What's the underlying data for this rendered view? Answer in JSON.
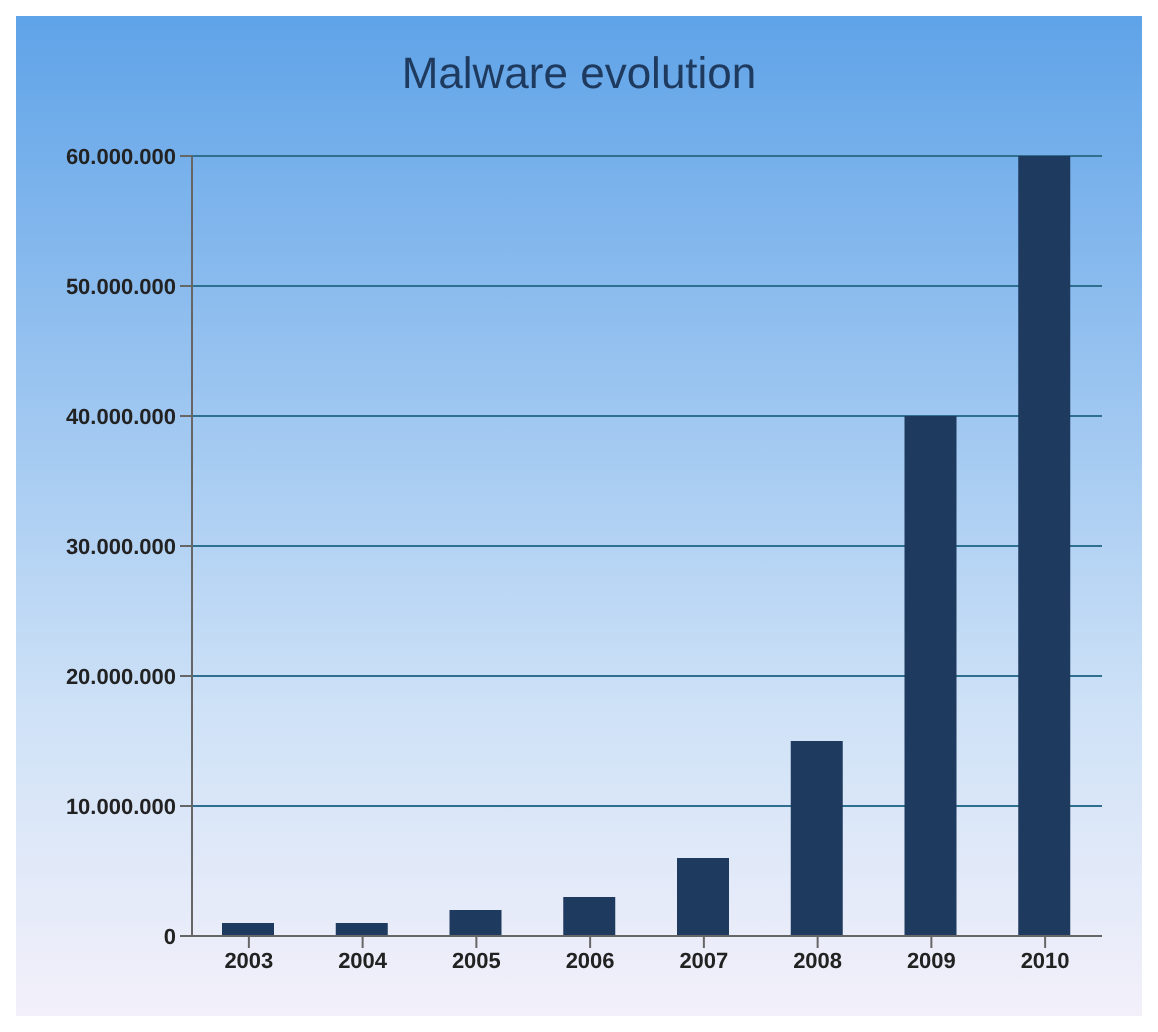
{
  "chart_data": {
    "type": "bar",
    "title": "Malware evolution",
    "categories": [
      "2003",
      "2004",
      "2005",
      "2006",
      "2007",
      "2008",
      "2009",
      "2010"
    ],
    "values": [
      1000000,
      1000000,
      2000000,
      3000000,
      6000000,
      15000000,
      40000000,
      60000000
    ],
    "color": "#1f3a5f",
    "ylim": [
      0,
      60000000
    ],
    "yticks": [
      {
        "value": 0,
        "label": "0"
      },
      {
        "value": 10000000,
        "label": "10.000.000"
      },
      {
        "value": 20000000,
        "label": "20.000.000"
      },
      {
        "value": 30000000,
        "label": "30.000.000"
      },
      {
        "value": 40000000,
        "label": "40.000.000"
      },
      {
        "value": 50000000,
        "label": "50.000.000"
      },
      {
        "value": 60000000,
        "label": "60.000.000"
      }
    ],
    "grid": "y"
  }
}
